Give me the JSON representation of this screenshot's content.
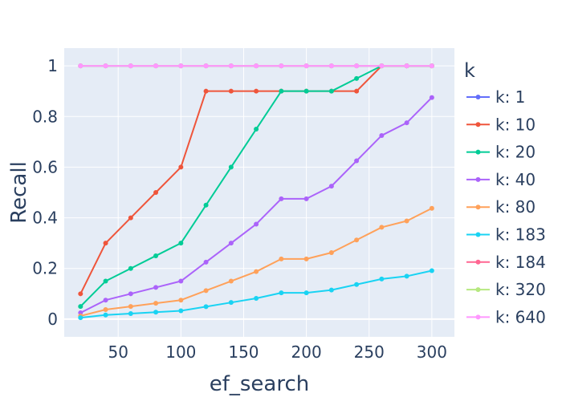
{
  "chart_data": {
    "type": "line",
    "title": "",
    "xlabel": "ef_search",
    "ylabel": "Recall",
    "xlim": [
      7,
      318
    ],
    "ylim": [
      -0.07,
      1.07
    ],
    "x_ticks": [
      50,
      100,
      150,
      200,
      250,
      300
    ],
    "x_tick_labels": [
      "50",
      "100",
      "150",
      "200",
      "250",
      "300"
    ],
    "y_ticks": [
      0,
      0.2,
      0.4,
      0.6,
      0.8,
      1
    ],
    "y_tick_labels": [
      "0",
      "0.2",
      "0.4",
      "0.6",
      "0.8",
      "1"
    ],
    "grid": true,
    "legend_title": "k",
    "legend_position": "right",
    "x": [
      20,
      40,
      60,
      80,
      100,
      120,
      140,
      160,
      180,
      200,
      220,
      240,
      260,
      280,
      300
    ],
    "series": [
      {
        "name": "k: 1",
        "color": "#636efa",
        "values": [
          1,
          1,
          1,
          1,
          1,
          1,
          1,
          1,
          1,
          1,
          1,
          1,
          1,
          1,
          1
        ]
      },
      {
        "name": "k: 10",
        "color": "#EF553B",
        "values": [
          0.1,
          0.3,
          0.4,
          0.5,
          0.6,
          0.9,
          0.9,
          0.9,
          0.9,
          0.9,
          0.9,
          0.9,
          1,
          1,
          1
        ]
      },
      {
        "name": "k: 20",
        "color": "#00cc96",
        "values": [
          0.05,
          0.15,
          0.2,
          0.25,
          0.3,
          0.45,
          0.6,
          0.75,
          0.9,
          0.9,
          0.9,
          0.95,
          1,
          1,
          1
        ]
      },
      {
        "name": "k: 40",
        "color": "#ab63fa",
        "values": [
          0.025,
          0.075,
          0.1,
          0.125,
          0.15,
          0.225,
          0.3,
          0.375,
          0.475,
          0.475,
          0.525,
          0.625,
          0.725,
          0.775,
          0.875
        ]
      },
      {
        "name": "k: 80",
        "color": "#FFA15A",
        "values": [
          0.0125,
          0.0375,
          0.05,
          0.0625,
          0.075,
          0.1125,
          0.15,
          0.1875,
          0.2375,
          0.2375,
          0.2625,
          0.3125,
          0.3625,
          0.3875,
          0.4375
        ]
      },
      {
        "name": "k: 183",
        "color": "#19d3f3",
        "values": [
          0.0055,
          0.0164,
          0.0219,
          0.0273,
          0.0328,
          0.0492,
          0.0656,
          0.082,
          0.1038,
          0.1038,
          0.1148,
          0.1366,
          0.1585,
          0.1694,
          0.1913
        ]
      },
      {
        "name": "k: 184",
        "color": "#FF6692",
        "values": [
          1,
          1,
          1,
          1,
          1,
          1,
          1,
          1,
          1,
          1,
          1,
          1,
          1,
          1,
          1
        ]
      },
      {
        "name": "k: 320",
        "color": "#B6E880",
        "values": [
          1,
          1,
          1,
          1,
          1,
          1,
          1,
          1,
          1,
          1,
          1,
          1,
          1,
          1,
          1
        ]
      },
      {
        "name": "k: 640",
        "color": "#FF97FF",
        "values": [
          1,
          1,
          1,
          1,
          1,
          1,
          1,
          1,
          1,
          1,
          1,
          1,
          1,
          1,
          1
        ]
      }
    ]
  }
}
